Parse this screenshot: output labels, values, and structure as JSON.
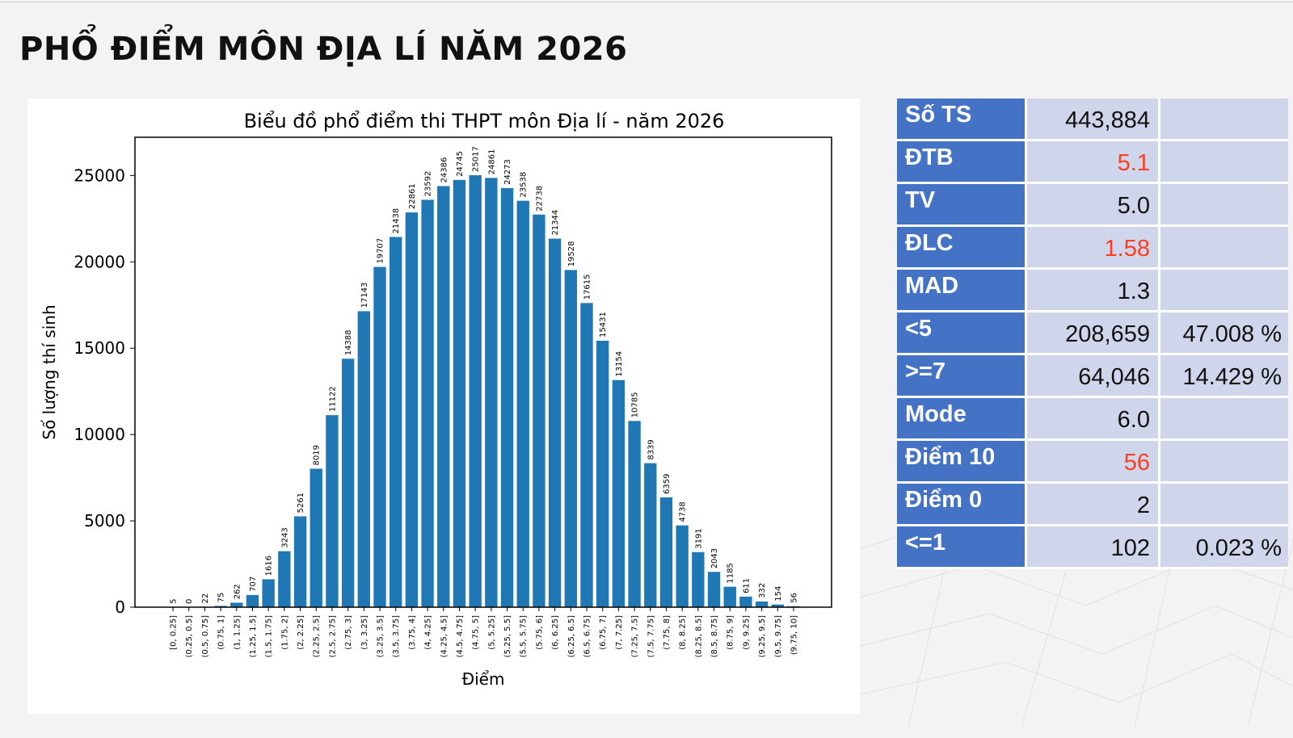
{
  "page_title": "PHỔ ĐIỂM MÔN ĐỊA LÍ NĂM 2026",
  "colors": {
    "bar": "#1f77b4",
    "label_bg": "#4472c4",
    "value_bg": "#cfd5ea",
    "highlight_text": "#ff3d1f"
  },
  "stats": [
    {
      "label": "Số TS",
      "value": "443,884",
      "percent": "",
      "highlight": false
    },
    {
      "label": "ĐTB",
      "value": "5.1",
      "percent": "",
      "highlight": true
    },
    {
      "label": "TV",
      "value": "5.0",
      "percent": "",
      "highlight": false
    },
    {
      "label": "ĐLC",
      "value": "1.58",
      "percent": "",
      "highlight": true
    },
    {
      "label": "MAD",
      "value": "1.3",
      "percent": "",
      "highlight": false
    },
    {
      "label": "<5",
      "value": "208,659",
      "percent": "47.008 %",
      "highlight": false
    },
    {
      "label": ">=7",
      "value": "64,046",
      "percent": "14.429 %",
      "highlight": false
    },
    {
      "label": "Mode",
      "value": "6.0",
      "percent": "",
      "highlight": false
    },
    {
      "label": "Điểm 10",
      "value": "56",
      "percent": "",
      "highlight": true
    },
    {
      "label": "Điểm 0",
      "value": "2",
      "percent": "",
      "highlight": false
    },
    {
      "label": "<=1",
      "value": "102",
      "percent": "0.023 %",
      "highlight": false
    }
  ],
  "chart_data": {
    "type": "bar",
    "title": "Biểu đồ phổ điểm thi THPT môn Địa lí - năm 2026",
    "xlabel": "Điểm",
    "ylabel": "Số lượng thí sinh",
    "ylim": [
      0,
      27500
    ],
    "yticks": [
      0,
      5000,
      10000,
      15000,
      20000,
      25000
    ],
    "grid": false,
    "categories": [
      "[0, 0.25]",
      "(0.25, 0.5]",
      "(0.5, 0.75]",
      "(0.75, 1]",
      "(1, 1.25]",
      "(1.25, 1.5]",
      "(1.5, 1.75]",
      "(1.75, 2]",
      "(2, 2.25]",
      "(2.25, 2.5]",
      "(2.5, 2.75]",
      "(2.75, 3]",
      "(3, 3.25]",
      "(3.25, 3.5]",
      "(3.5, 3.75]",
      "(3.75, 4]",
      "(4, 4.25]",
      "(4.25, 4.5]",
      "(4.5, 4.75]",
      "(4.75, 5]",
      "(5, 5.25]",
      "(5.25, 5.5]",
      "(5.5, 5.75]",
      "(5.75, 6]",
      "(6, 6.25]",
      "(6.25, 6.5]",
      "(6.5, 6.75]",
      "(6.75, 7]",
      "(7, 7.25]",
      "(7.25, 7.5]",
      "(7.5, 7.75]",
      "(7.75, 8]",
      "(8, 8.25]",
      "(8.25, 8.5]",
      "(8.5, 8.75]",
      "(8.75, 9]",
      "(9, 9.25]",
      "(9.25, 9.5]",
      "(9.5, 9.75]",
      "(9.75, 10]"
    ],
    "values": [
      5,
      0,
      22,
      75,
      262,
      707,
      1616,
      3243,
      5261,
      8019,
      11122,
      14388,
      17143,
      19707,
      21438,
      22861,
      23592,
      24386,
      24745,
      25017,
      24861,
      24273,
      23538,
      22738,
      21344,
      19528,
      17615,
      15431,
      13154,
      10785,
      8339,
      6359,
      4738,
      3191,
      2043,
      1185,
      611,
      332,
      154,
      56
    ]
  }
}
